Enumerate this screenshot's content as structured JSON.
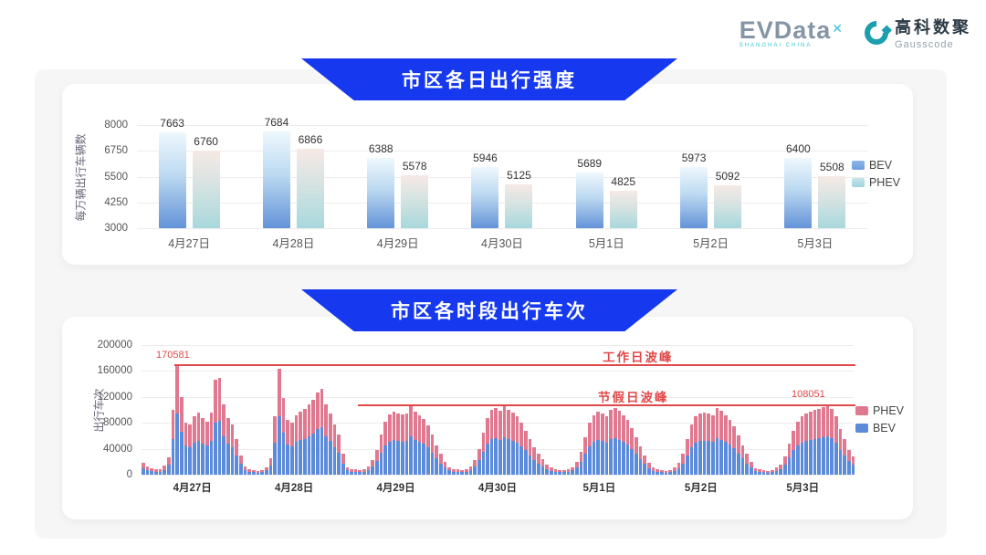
{
  "header": {
    "evdata_brand": "EVData",
    "evdata_sup": "✕",
    "evdata_tagline": "SHANGHAI CHINA",
    "gausscode_cn": "高科数聚",
    "gausscode_en": "Gausscode"
  },
  "colors": {
    "banner_blue": "#1639f0",
    "bev_blue": "#5b8bd9",
    "phev_pink": "#e0788f",
    "bev_gradient_top": "#eef8fd",
    "bev_gradient_bottom": "#6393d8",
    "phev_gradient_top": "#f6e9e5",
    "phev_gradient_bottom": "#a8d8dc",
    "annotation_red": "#e14848",
    "logo_teal": "#1b9fae"
  },
  "chart_data": [
    {
      "type": "bar",
      "title": "市区各日出行强度",
      "ylabel": "每万辆出行车辆数",
      "xlabel": "",
      "ylim": [
        3000,
        8000
      ],
      "yticks": [
        8000,
        6750,
        5500,
        4250,
        3000
      ],
      "grid": true,
      "legend_position": "right",
      "legend": [
        "BEV",
        "PHEV"
      ],
      "categories": [
        "4月27日",
        "4月28日",
        "4月29日",
        "4月30日",
        "5月1日",
        "5月2日",
        "5月3日"
      ],
      "series": [
        {
          "name": "BEV",
          "values": [
            7663,
            7684,
            6388,
            5946,
            5689,
            5973,
            6400
          ]
        },
        {
          "name": "PHEV",
          "values": [
            6760,
            6866,
            5578,
            5125,
            4825,
            5092,
            5508
          ]
        }
      ]
    },
    {
      "type": "stacked-bar",
      "title": "市区各时段出行车次",
      "ylabel": "出行车次",
      "xlabel": "",
      "ylim": [
        0,
        200000
      ],
      "yticks": [
        200000,
        160000,
        120000,
        80000,
        40000,
        0
      ],
      "grid": true,
      "legend_position": "right",
      "legend": [
        "PHEV",
        "BEV"
      ],
      "stack_order": [
        "BEV",
        "PHEV"
      ],
      "bev_fraction": 0.55,
      "categories": [
        "4月27日",
        "4月28日",
        "4月29日",
        "4月30日",
        "5月1日",
        "5月2日",
        "5月3日"
      ],
      "hour_totals": {
        "4月27日": [
          18000,
          13000,
          10000,
          8000,
          8000,
          14000,
          27000,
          100000,
          170581,
          120000,
          81000,
          77000,
          90000,
          96000,
          88000,
          82000,
          96000,
          146000,
          150000,
          108000,
          88000,
          78000,
          55000,
          30000
        ],
        "4月28日": [
          13000,
          9000,
          7000,
          6000,
          7000,
          12000,
          25000,
          90000,
          163000,
          119000,
          84000,
          80000,
          91000,
          97000,
          101000,
          108000,
          115000,
          127000,
          133000,
          108000,
          95000,
          77000,
          62000,
          32000
        ],
        "4月29日": [
          12000,
          9000,
          8000,
          7000,
          8000,
          13000,
          22000,
          38000,
          62000,
          82000,
          93000,
          97000,
          95000,
          93000,
          95000,
          108000,
          97000,
          92000,
          86000,
          76000,
          62000,
          45000,
          32000,
          20000
        ],
        "4月30日": [
          12000,
          9000,
          8000,
          7000,
          8000,
          13000,
          22000,
          40000,
          65000,
          88000,
          100000,
          103000,
          98000,
          105000,
          100000,
          96000,
          90000,
          80000,
          68000,
          55000,
          42000,
          32000,
          24000,
          16000
        ],
        "5月1日": [
          11000,
          8000,
          7000,
          7000,
          8000,
          12000,
          20000,
          35000,
          58000,
          80000,
          92000,
          97000,
          95000,
          90000,
          100000,
          103000,
          98000,
          92000,
          85000,
          72000,
          58000,
          44000,
          30000,
          18000
        ],
        "5月2日": [
          11000,
          8000,
          7000,
          6000,
          7000,
          11000,
          18000,
          32000,
          55000,
          78000,
          90000,
          95000,
          96000,
          94000,
          92000,
          103000,
          98000,
          92000,
          85000,
          75000,
          60000,
          45000,
          32000,
          20000
        ],
        "5月3日": [
          10000,
          8000,
          7000,
          6000,
          7000,
          11000,
          16000,
          28000,
          48000,
          68000,
          82000,
          90000,
          94000,
          97000,
          100000,
          102000,
          104000,
          108051,
          102000,
          90000,
          70000,
          55000,
          38000,
          28000
        ]
      },
      "annotations": [
        {
          "text": "170581",
          "type": "peak-value"
        },
        {
          "text": "108051",
          "type": "peak-value"
        },
        {
          "text": "工作日波峰",
          "type": "reference-line-label",
          "value": 170581
        },
        {
          "text": "节假日波峰",
          "type": "reference-line-label",
          "value": 108051
        }
      ]
    }
  ]
}
